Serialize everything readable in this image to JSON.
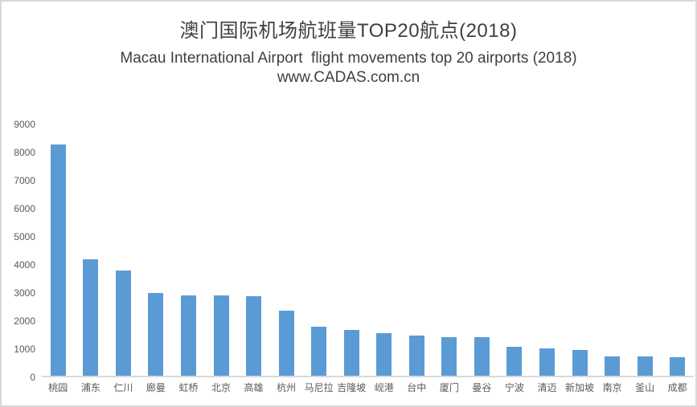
{
  "title": "澳门国际机场航班量TOP20航点(2018)",
  "subtitle": "Macau International Airport  flight movements top 20 airports (2018)",
  "watermark": "www.CADAS.com.cn",
  "colors": {
    "bar": "#5b9bd5",
    "title_text": "#3f3f3f",
    "axis_text": "#595959",
    "axis_line": "#d9d9d9",
    "border": "#d9d9d9",
    "background": "#ffffff"
  },
  "chart_data": {
    "type": "bar",
    "title": "澳门国际机场航班量TOP20航点(2018)",
    "subtitle": "Macau International Airport  flight movements top 20 airports (2018)",
    "annotation": "www.CADAS.com.cn",
    "categories": [
      "桃园",
      "浦东",
      "仁川",
      "廊曼",
      "虹桥",
      "北京",
      "高雄",
      "杭州",
      "马尼拉",
      "吉隆坡",
      "岘港",
      "台中",
      "厦门",
      "曼谷",
      "宁波",
      "清迈",
      "新加坡",
      "南京",
      "釜山",
      "成都"
    ],
    "values": [
      8250,
      4170,
      3770,
      2960,
      2900,
      2880,
      2850,
      2330,
      1780,
      1670,
      1550,
      1470,
      1410,
      1410,
      1060,
      1010,
      950,
      720,
      720,
      690
    ],
    "xlabel": "",
    "ylabel": "",
    "ylim": [
      0,
      9000
    ],
    "ytick_step": 1000,
    "yticks": [
      0,
      1000,
      2000,
      3000,
      4000,
      5000,
      6000,
      7000,
      8000,
      9000
    ],
    "grid": false,
    "legend": false,
    "bar_color": "#5b9bd5"
  }
}
